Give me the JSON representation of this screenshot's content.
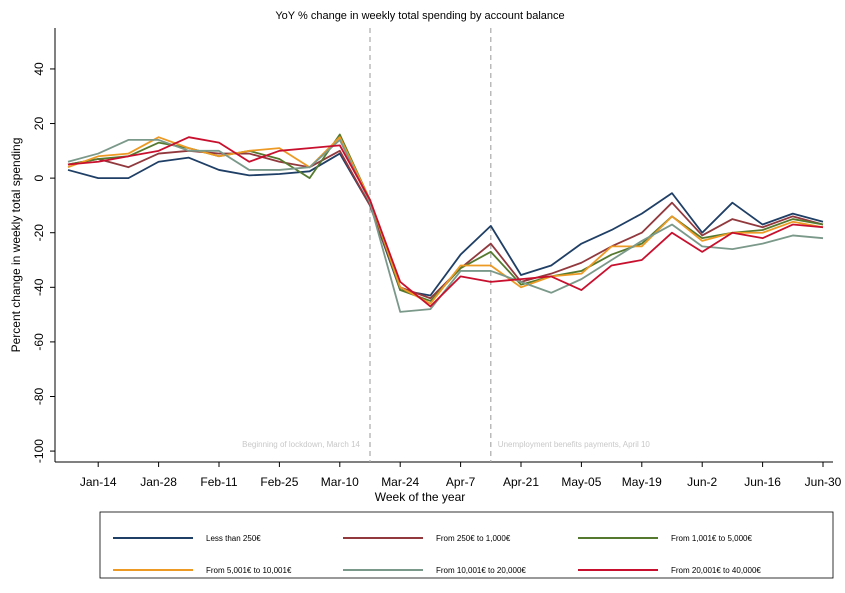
{
  "chart_data": {
    "type": "line",
    "title": "YoY % change in weekly total spending by account balance",
    "x_label": "Week of the year",
    "y_label": "Percent change in weekly total spending",
    "categories": [
      null,
      "Jan-14",
      null,
      "Jan-28",
      null,
      "Feb-11",
      null,
      "Feb-25",
      null,
      "Mar-10",
      null,
      "Mar-24",
      null,
      "Apr-7",
      null,
      "Apr-21",
      null,
      "May-05",
      null,
      "May-19",
      null,
      "Jun-2",
      null,
      "Jun-16",
      null,
      "Jun-30"
    ],
    "ylim": [
      -104,
      55
    ],
    "yticks": [
      -100,
      -80,
      -60,
      -40,
      -20,
      0,
      20,
      40
    ],
    "annotations": [
      {
        "text": "Beginning of lockdown, March 14",
        "x": 10
      },
      {
        "text": "Unemployment benefits payments, April 10",
        "x": 14
      }
    ],
    "series": [
      {
        "name": "Less than 250€",
        "color": "#1f3f66",
        "values": [
          3,
          0,
          0,
          6,
          7.5,
          3,
          1,
          1.5,
          2.5,
          9,
          -10,
          -41,
          -43,
          -28,
          -17.5,
          -35.5,
          -32,
          -24,
          -19,
          -13,
          -5.5,
          -20,
          -9,
          -17,
          -13,
          -16
        ]
      },
      {
        "name": "From 250€ to 1,000€",
        "color": "#92393e",
        "values": [
          5,
          7,
          4,
          9,
          10,
          9,
          9,
          6,
          4,
          10,
          -10,
          -40,
          -44,
          -33,
          -24,
          -38,
          -35,
          -31,
          -25,
          -20,
          -9,
          -21,
          -15,
          -18,
          -14,
          -17
        ]
      },
      {
        "name": "From 1,001€ to 5,000€",
        "color": "#557a2f",
        "values": [
          5,
          7,
          8,
          13,
          11,
          8,
          10,
          7,
          0,
          16,
          -8,
          -41,
          -45,
          -33,
          -27,
          -39,
          -36,
          -34,
          -28,
          -24,
          -14,
          -22,
          -20,
          -19,
          -15,
          -17
        ]
      },
      {
        "name": "From 5,001€ to 10,001€",
        "color": "#ed9a24",
        "values": [
          4,
          8,
          9,
          15,
          11,
          8,
          10,
          11,
          4,
          15,
          -8,
          -40,
          -46,
          -32,
          -32,
          -40,
          -36,
          -35,
          -25,
          -25,
          -14,
          -23,
          -20,
          -20,
          -16,
          -18
        ]
      },
      {
        "name": "From 10,001€ to 20,000€",
        "color": "#7b998a",
        "values": [
          6,
          9,
          14,
          14,
          10,
          10,
          3,
          3,
          4,
          14,
          -9,
          -49,
          -48,
          -34,
          -34,
          -38,
          -42,
          -37,
          -30,
          -23,
          -17,
          -25,
          -26,
          -24,
          -21,
          -22
        ]
      },
      {
        "name": "From 20,001€ to 40,000€",
        "color": "#c8102e",
        "values": [
          5,
          6,
          8,
          10,
          15,
          13,
          6,
          10,
          11,
          12,
          -8,
          -38,
          -47,
          -36,
          -38,
          -37,
          -36,
          -41,
          -32,
          -30,
          -20,
          -27,
          -20,
          -22,
          -17,
          -18
        ]
      }
    ]
  }
}
